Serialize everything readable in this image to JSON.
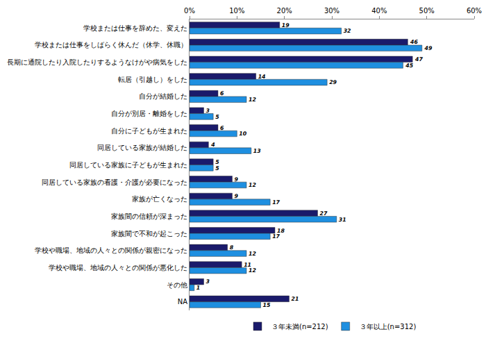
{
  "chart_data": {
    "type": "bar",
    "orientation": "horizontal",
    "categories": [
      "学校または仕事を辞めた、変えた",
      "学校または仕事をしばらく休んだ（休学、休職）",
      "長期に通院したり入院したりするようなけがや病気をした",
      "転居（引越し）をした",
      "自分が結婚した",
      "自分が別居・離婚をした",
      "自分に子どもが生まれた",
      "同居している家族が結婚した",
      "同居している家族に子どもが生まれた",
      "同居している家族の看護・介護が必要になった",
      "家族が亡くなった",
      "家族間の信頼が深まった",
      "家族間で不和が起こった",
      "学校や職場、地域の人々との関係が親密になった",
      "学校や職場、地域の人々との関係が悪化した",
      "その他",
      "NA"
    ],
    "series": [
      {
        "name": "３年未満(n=212)",
        "color": "#1a1a6b",
        "values": [
          19,
          46,
          47,
          14,
          6,
          3,
          6,
          4,
          5,
          9,
          9,
          27,
          18,
          8,
          11,
          3,
          21
        ]
      },
      {
        "name": "３年以上(n=312)",
        "color": "#1e8fe0",
        "values": [
          32,
          49,
          45,
          29,
          12,
          5,
          10,
          13,
          5,
          12,
          17,
          31,
          17,
          12,
          12,
          1,
          15
        ]
      }
    ],
    "xlim": [
      0,
      60
    ],
    "xticks": [
      {
        "value": 0,
        "label": "0%"
      },
      {
        "value": 10,
        "label": "10%"
      },
      {
        "value": 20,
        "label": "20%"
      },
      {
        "value": 30,
        "label": "30%"
      },
      {
        "value": 40,
        "label": "40%"
      },
      {
        "value": 50,
        "label": "50%"
      },
      {
        "value": 60,
        "label": "60%"
      }
    ],
    "grid": false,
    "data_labels": true,
    "legend": "bottom"
  }
}
